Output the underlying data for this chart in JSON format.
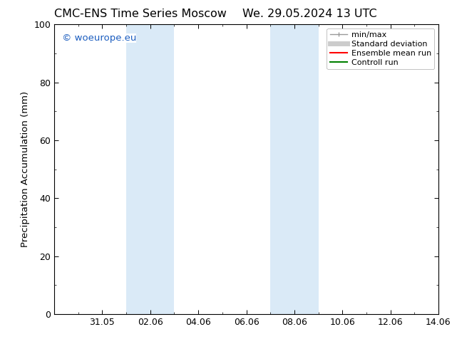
{
  "title_left": "CMC-ENS Time Series Moscow",
  "title_right": "We. 29.05.2024 13 UTC",
  "ylabel": "Precipitation Accumulation (mm)",
  "ylim": [
    0,
    100
  ],
  "yticks": [
    0,
    20,
    40,
    60,
    80,
    100
  ],
  "xtick_labels": [
    "31.05",
    "02.06",
    "04.06",
    "06.06",
    "08.06",
    "10.06",
    "12.06",
    "14.06"
  ],
  "shaded_bands": [
    {
      "x_start": 3.0,
      "x_end": 5.0,
      "color": "#daeaf7"
    },
    {
      "x_start": 9.0,
      "x_end": 11.0,
      "color": "#daeaf7"
    }
  ],
  "watermark_text": "© woeurope.eu",
  "watermark_color": "#1a5cbf",
  "background_color": "#ffffff",
  "plot_bg_color": "#ffffff",
  "legend_entries": [
    {
      "label": "min/max",
      "color": "#999999",
      "lw": 1.0
    },
    {
      "label": "Standard deviation",
      "color": "#cccccc",
      "lw": 5.0
    },
    {
      "label": "Ensemble mean run",
      "color": "#ff0000",
      "lw": 1.5
    },
    {
      "label": "Controll run",
      "color": "#008000",
      "lw": 1.5
    }
  ],
  "title_fontsize": 11.5,
  "axis_fontsize": 9.5,
  "tick_fontsize": 9,
  "watermark_fontsize": 9.5,
  "legend_fontsize": 8.0,
  "x_num_ticks": 8,
  "x_spacing": 2.0,
  "x_min": 0.0,
  "x_max": 16.0
}
